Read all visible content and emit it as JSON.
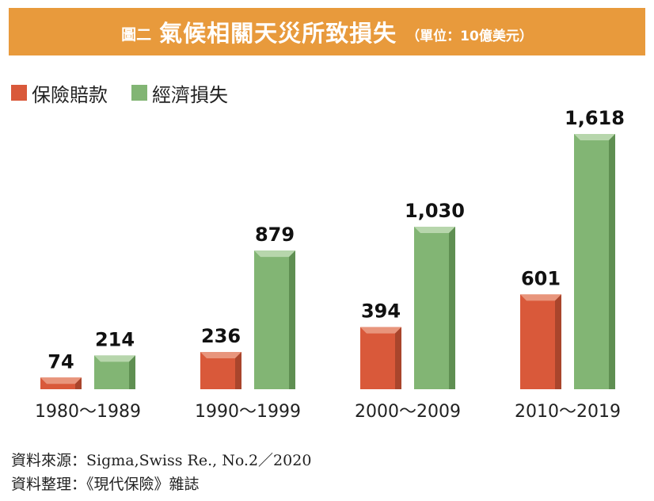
{
  "header": {
    "prefix": "圖二",
    "title": "氣候相關天災所致損失",
    "unit": "（單位：10億美元）"
  },
  "colors": {
    "title_bg": "#e89a3c",
    "insured": "#d9593a",
    "economic": "#82b574"
  },
  "source": {
    "line1": "資料來源：Sigma,Swiss Re., No.2／2020",
    "line2": "資料整理：《現代保險》雜誌"
  },
  "chart_data": {
    "type": "bar",
    "categories": [
      "1980～1989",
      "1990～1999",
      "2000～2009",
      "2010～2019"
    ],
    "series": [
      {
        "name": "保險賠款",
        "values": [
          74,
          236,
          394,
          601
        ],
        "labels": [
          "74",
          "236",
          "394",
          "601"
        ]
      },
      {
        "name": "經濟損失",
        "values": [
          214,
          879,
          1030,
          1618
        ],
        "labels": [
          "214",
          "879",
          "1,030",
          "1,618"
        ]
      }
    ],
    "title": "氣候相關天災所致損失",
    "xlabel": "",
    "ylabel": "",
    "ylim": [
      0,
      1618
    ],
    "grid": false,
    "legend_position": "top-left"
  }
}
